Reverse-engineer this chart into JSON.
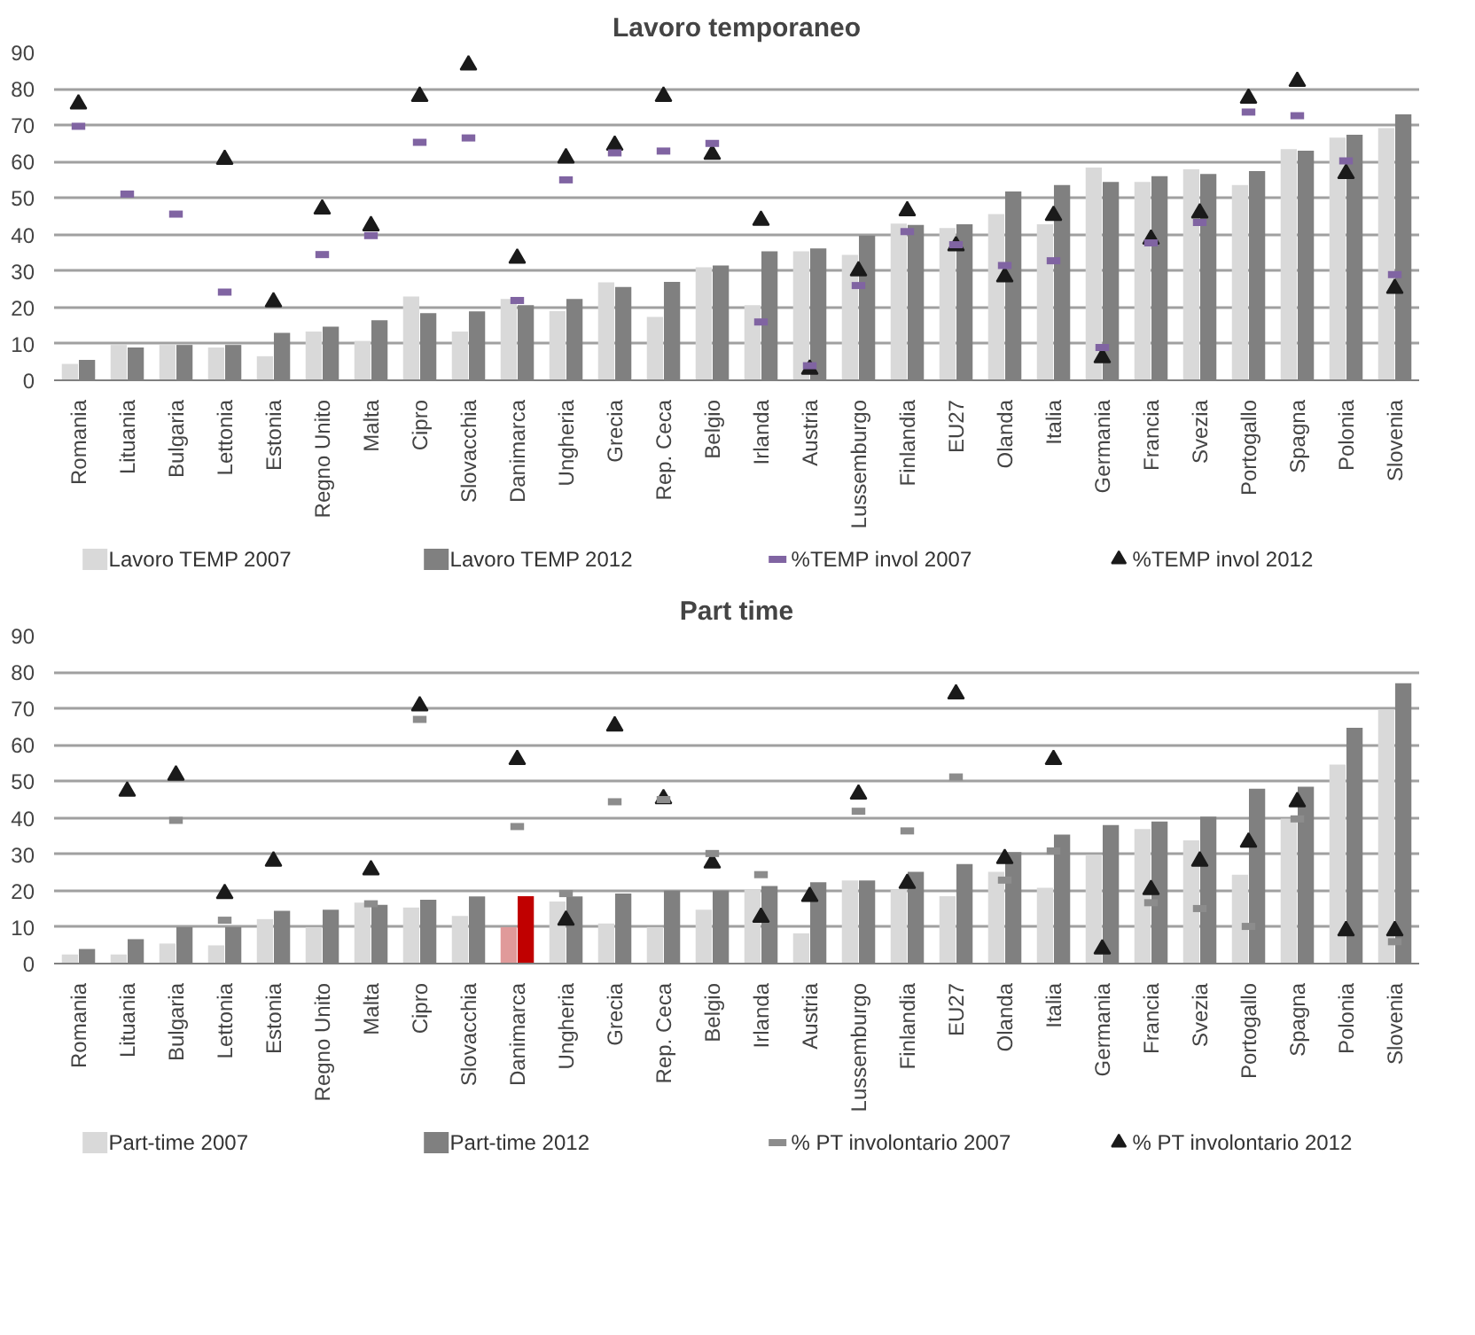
{
  "chart_data": [
    {
      "type": "bar",
      "title": "Lavoro temporaneo",
      "categories": [
        "Romania",
        "Lituania",
        "Bulgaria",
        "Lettonia",
        "Estonia",
        "Regno Unito",
        "Malta",
        "Cipro",
        "Slovacchia",
        "Danimarca",
        "Ungheria",
        "Grecia",
        "Rep. Ceca",
        "Belgio",
        "Irlanda",
        "Austria",
        "Lussemburgo",
        "Finlandia",
        "EU27",
        "Olanda",
        "Italia",
        "Germania",
        "Francia",
        "Svezia",
        "Portogallo",
        "Spagna",
        "Polonia",
        "Slovenia"
      ],
      "series": [
        {
          "name": "Lavoro TEMP 2007",
          "color": "#d9d9d9",
          "values": [
            4.5,
            9.7,
            9.7,
            9,
            6.6,
            13.4,
            10.8,
            23,
            13.4,
            22.3,
            19,
            26.9,
            17.4,
            31,
            20.6,
            35.4,
            34.4,
            43,
            41.8,
            45.6,
            42.8,
            58.4,
            54.4,
            57.9,
            53.6,
            63.4,
            66.6,
            69.2
          ]
        },
        {
          "name": "Lavoro TEMP 2012",
          "color": "#808080",
          "values": [
            5.6,
            9,
            9.7,
            9.7,
            13,
            14.7,
            16.5,
            18.4,
            18.9,
            20.6,
            22.3,
            25.6,
            27,
            31.5,
            35.4,
            36.2,
            39.7,
            42.6,
            42.8,
            51.8,
            53.6,
            54.4,
            56,
            56.6,
            57.4,
            63,
            67.4,
            73
          ]
        },
        {
          "name": "%TEMP invol 2007",
          "type": "scatter",
          "marker": "square",
          "color": "#8064a2",
          "values": [
            69.7,
            51.1,
            45.6,
            24.2,
            null,
            34.5,
            39.7,
            65.3,
            66.5,
            21.9,
            55,
            62.4,
            62.9,
            65,
            16,
            4,
            26,
            40.8,
            37.2,
            31.5,
            32.8,
            9,
            37.7,
            43.3,
            73.6,
            72.6,
            60.2,
            29
          ]
        },
        {
          "name": "%TEMP invol 2012",
          "type": "scatter",
          "marker": "triangle",
          "color": "#1a1a1a",
          "values": [
            75.8,
            null,
            null,
            60.6,
            21.5,
            47,
            42.4,
            77.9,
            86.5,
            33.5,
            61,
            64.5,
            77.9,
            62,
            43.9,
            3,
            30,
            46.5,
            36.9,
            28.4,
            45.2,
            6.2,
            38.7,
            45.9,
            77.4,
            82,
            56.7,
            25.2
          ]
        }
      ],
      "ylim": [
        0,
        90
      ],
      "yticks": [
        0,
        10,
        20,
        30,
        40,
        50,
        60,
        70,
        80,
        90
      ],
      "grid": "y",
      "legend": "bottom"
    },
    {
      "type": "bar",
      "title": "Part time",
      "categories": [
        "Romania",
        "Lituania",
        "Bulgaria",
        "Lettonia",
        "Estonia",
        "Regno Unito",
        "Malta",
        "Cipro",
        "Slovacchia",
        "Danimarca",
        "Ungheria",
        "Grecia",
        "Rep. Ceca",
        "Belgio",
        "Irlanda",
        "Austria",
        "Lussemburgo",
        "Finlandia",
        "EU27",
        "Olanda",
        "Italia",
        "Germania",
        "Francia",
        "Svezia",
        "Portogallo",
        "Spagna",
        "Polonia",
        "Slovenia"
      ],
      "series": [
        {
          "name": "Part-time 2007",
          "color": "#d9d9d9",
          "colors": [
            "#d9d9d9",
            "#d9d9d9",
            "#d9d9d9",
            "#d9d9d9",
            "#d9d9d9",
            "#d9d9d9",
            "#d9d9d9",
            "#d9d9d9",
            "#d9d9d9",
            "#e09a9a",
            "#d9d9d9",
            "#d9d9d9",
            "#d9d9d9",
            "#d9d9d9",
            "#d9d9d9",
            "#d9d9d9",
            "#d9d9d9",
            "#d9d9d9",
            "#d9d9d9",
            "#d9d9d9",
            "#d9d9d9",
            "#d9d9d9",
            "#d9d9d9",
            "#d9d9d9",
            "#d9d9d9",
            "#d9d9d9",
            "#d9d9d9",
            "#d9d9d9"
          ],
          "values": [
            2.5,
            2.5,
            5.5,
            5,
            12.2,
            10,
            16.7,
            15.4,
            13.1,
            10,
            17,
            11,
            10,
            14.8,
            20.3,
            8.3,
            22.8,
            20.3,
            18.5,
            25.2,
            20.8,
            29.8,
            36.9,
            33.8,
            24.4,
            39.8,
            54.6,
            69.6
          ]
        },
        {
          "name": "Part-time 2012",
          "color": "#808080",
          "colors": [
            "#808080",
            "#808080",
            "#808080",
            "#808080",
            "#808080",
            "#808080",
            "#808080",
            "#808080",
            "#808080",
            "#c00000",
            "#808080",
            "#808080",
            "#808080",
            "#808080",
            "#808080",
            "#808080",
            "#808080",
            "#808080",
            "#808080",
            "#808080",
            "#808080",
            "#808080",
            "#808080",
            "#808080",
            "#808080",
            "#808080",
            "#808080",
            "#808080"
          ],
          "values": [
            4,
            6.7,
            10,
            10,
            14.5,
            14.8,
            16.1,
            17.5,
            18.4,
            18.5,
            18.4,
            19.2,
            20,
            20,
            21.3,
            22.3,
            22.8,
            25.2,
            27.3,
            30.6,
            35.4,
            38,
            39,
            40.3,
            48,
            48.5,
            64.7,
            76.9
          ]
        },
        {
          "name": "% PT involontario 2007",
          "type": "scatter",
          "marker": "square",
          "color": "#8c8c8c",
          "values": [
            null,
            null,
            39.3,
            11.9,
            null,
            null,
            16.4,
            67,
            null,
            37.6,
            19.2,
            44.4,
            45,
            30.2,
            24.4,
            null,
            41.8,
            36.4,
            51.2,
            22.9,
            30.9,
            null,
            16.7,
            15.1,
            10.2,
            39.7,
            null,
            6
          ]
        },
        {
          "name": "% PT involontario 2012",
          "type": "scatter",
          "marker": "triangle",
          "color": "#1a1a1a",
          "values": [
            null,
            47.3,
            51.7,
            19.2,
            28.1,
            null,
            25.7,
            70.7,
            null,
            56,
            11.9,
            65.2,
            45.2,
            27.6,
            12.7,
            18.4,
            46.5,
            22,
            74,
            28.8,
            56,
            4,
            20.3,
            28.1,
            33.3,
            44.4,
            9,
            9
          ]
        }
      ],
      "ylim": [
        0,
        90
      ],
      "yticks": [
        0,
        10,
        20,
        30,
        40,
        50,
        60,
        70,
        80,
        90
      ],
      "grid": "y",
      "legend": "bottom"
    }
  ]
}
